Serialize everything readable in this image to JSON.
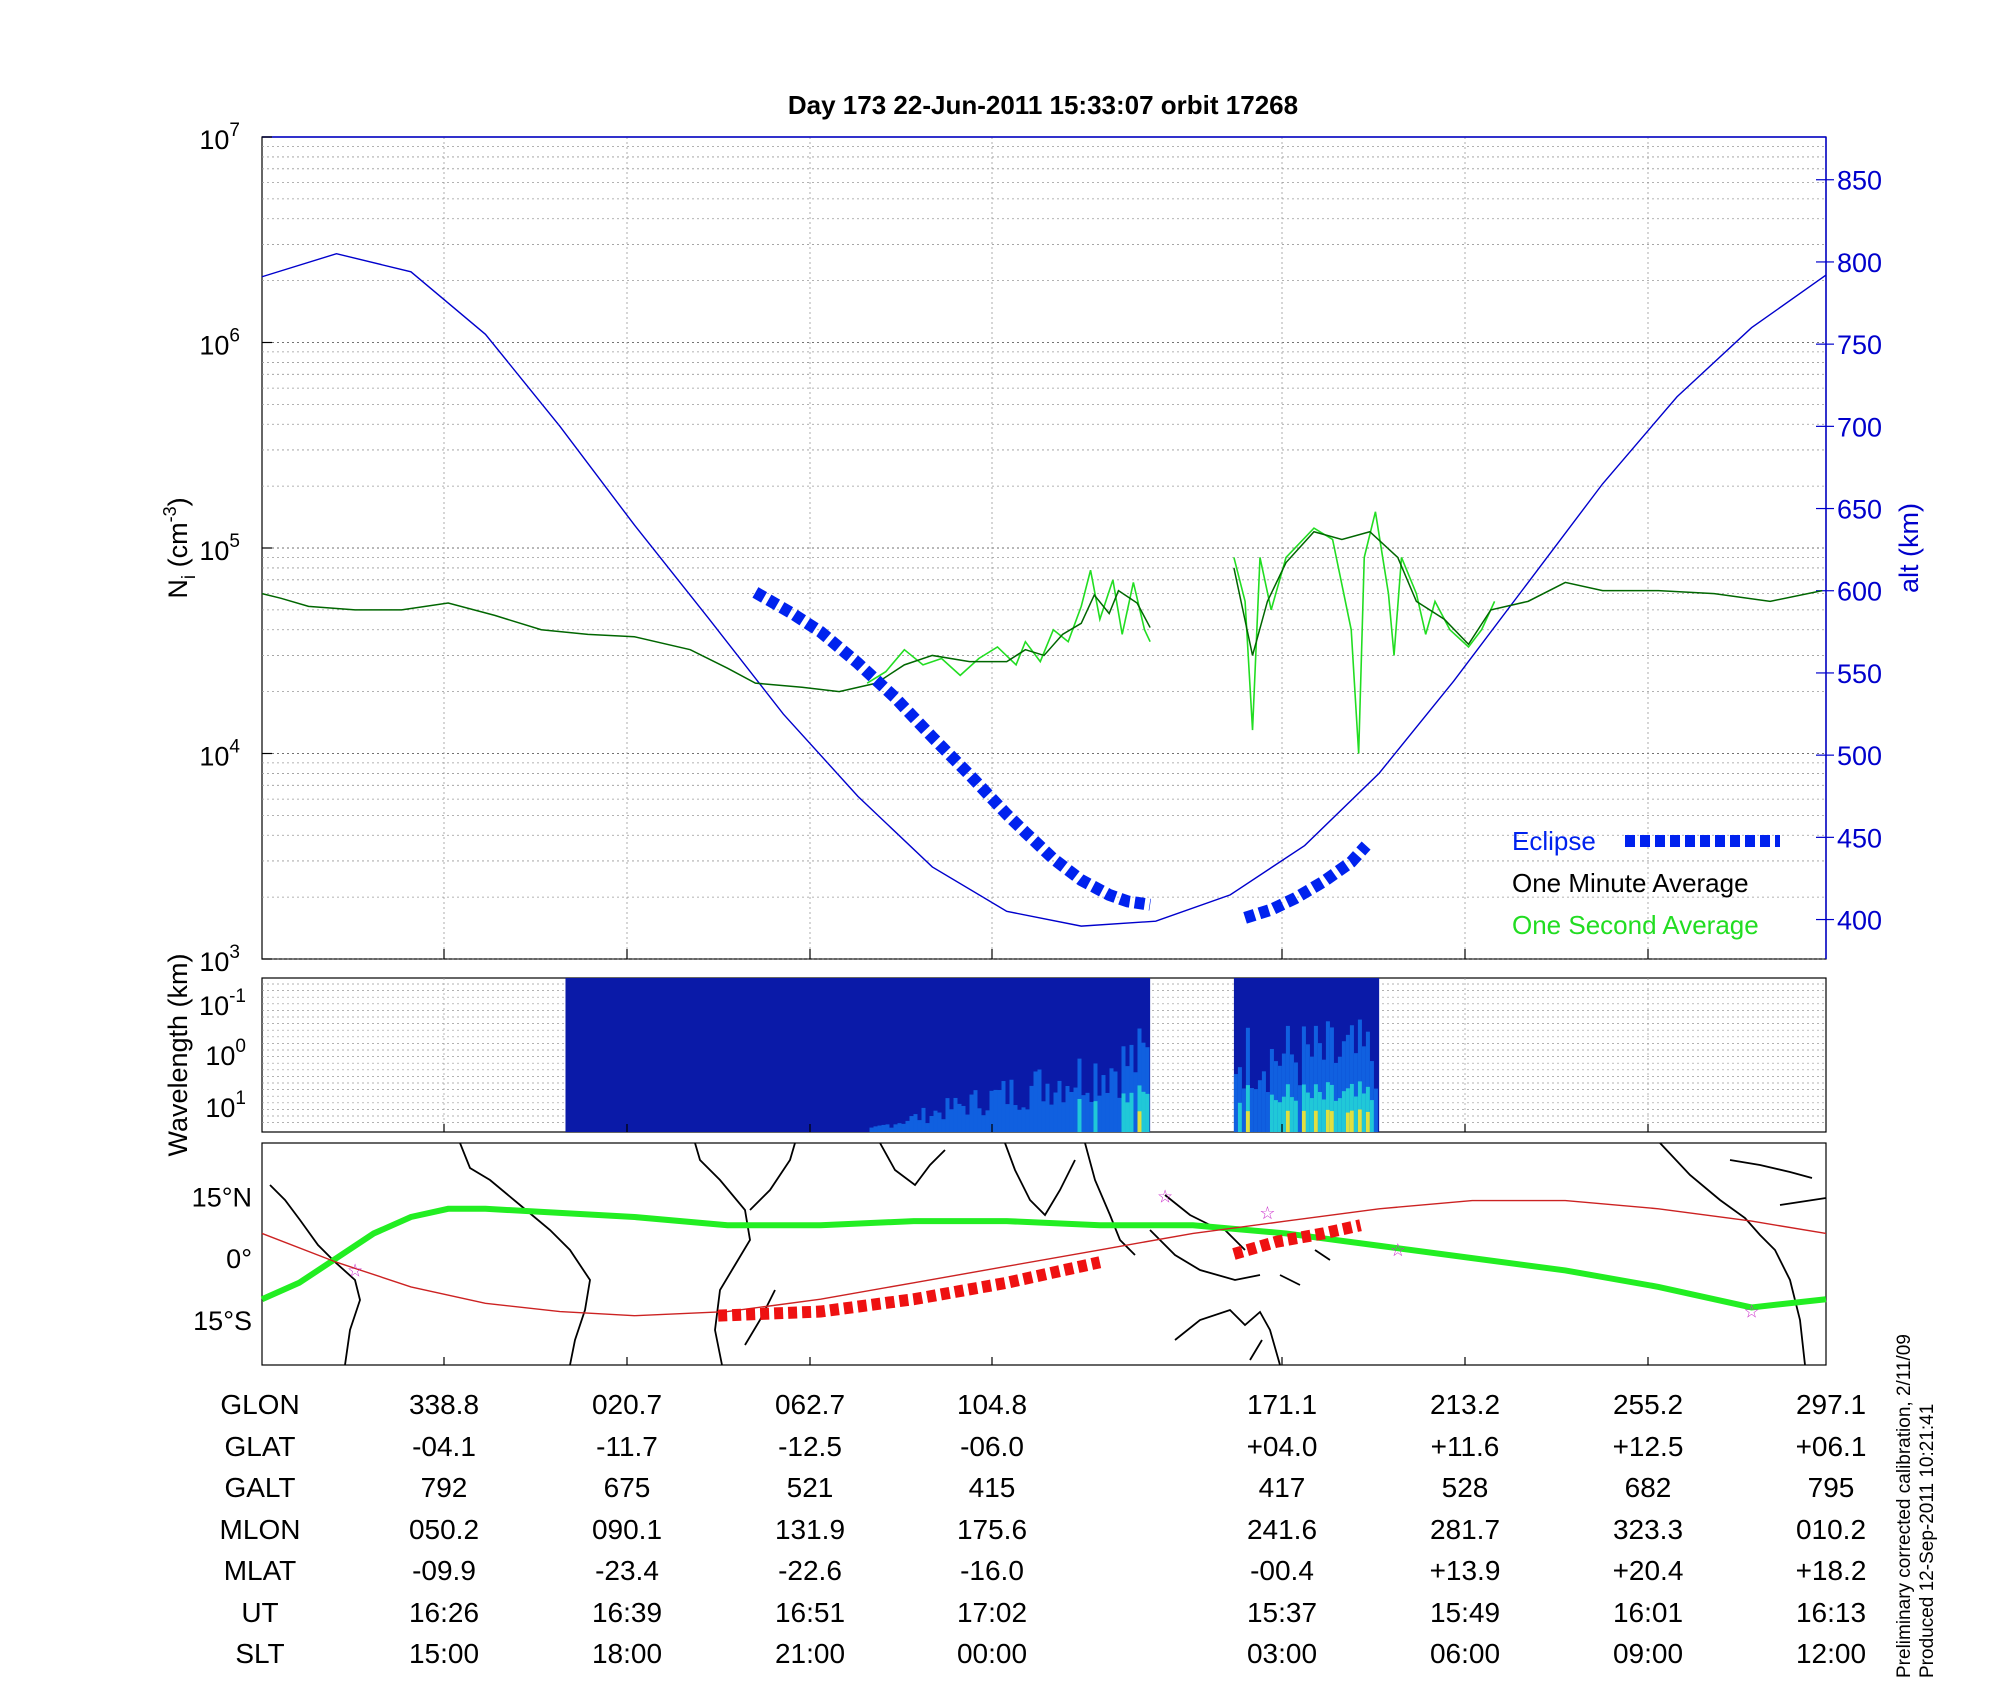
{
  "title": "Day 173  22-Jun-2011 15:33:07   orbit 17268",
  "chart_data": [
    {
      "type": "line",
      "panel": "ion-density",
      "ylabel_left": "N_i (cm^-3)",
      "ylabel_left_parts": {
        "base": "N",
        "sub": "i",
        "units": " (cm",
        "sup": "-3",
        "close": ")"
      },
      "ylabel_right": "alt (km)",
      "yscale_left": "log",
      "ylim_left": [
        1000,
        10000000
      ],
      "yticks_left": [
        {
          "value": 1000,
          "base": "10",
          "exp": "3"
        },
        {
          "value": 10000,
          "base": "10",
          "exp": "4"
        },
        {
          "value": 100000,
          "base": "10",
          "exp": "5"
        },
        {
          "value": 1000000,
          "base": "10",
          "exp": "6"
        },
        {
          "value": 10000000,
          "base": "10",
          "exp": "7"
        }
      ],
      "ylim_right": [
        376,
        876
      ],
      "yticks_right": [
        400,
        450,
        500,
        550,
        600,
        650,
        700,
        750,
        800,
        850
      ],
      "grid": true,
      "legend_placement": "bottom-right",
      "legend": [
        "Eclipse",
        "One Minute Average",
        "One Second Average"
      ],
      "colors": {
        "altitude": "#0000cc",
        "eclipse": "#0022ee",
        "minute": "#006600",
        "second": "#22dd22",
        "right_axis": "#0000cc"
      },
      "series": [
        {
          "name": "Eclipse",
          "segments": [
            [
              [
                265,
                599
              ],
              [
                285,
                586
              ],
              [
                300,
                575
              ],
              [
                320,
                556
              ],
              [
                340,
                535
              ],
              [
                360,
                511
              ],
              [
                380,
                488
              ],
              [
                400,
                464
              ],
              [
                410,
                453
              ],
              [
                425,
                437
              ],
              [
                440,
                424
              ],
              [
                455,
                415
              ],
              [
                465,
                411
              ],
              [
                477,
                409
              ]
            ],
            [
              [
                528,
                401
              ],
              [
                542,
                406
              ],
              [
                555,
                413
              ],
              [
                570,
                423
              ],
              [
                585,
                435
              ],
              [
                593,
                445
              ]
            ]
          ]
        },
        {
          "name": "One Minute Average",
          "segments": [
            [
              [
                0,
                60000
              ],
              [
                10,
                57000
              ],
              [
                25,
                52000
              ],
              [
                50,
                50000
              ],
              [
                75,
                50000
              ],
              [
                100,
                54000
              ],
              [
                125,
                47000
              ],
              [
                150,
                40000
              ],
              [
                175,
                38000
              ],
              [
                200,
                37000
              ],
              [
                230,
                32000
              ],
              [
                250,
                26000
              ],
              [
                265,
                22000
              ],
              [
                290,
                21000
              ],
              [
                310,
                20000
              ],
              [
                330,
                22000
              ],
              [
                345,
                27000
              ],
              [
                360,
                30000
              ],
              [
                380,
                28000
              ],
              [
                400,
                28000
              ],
              [
                410,
                32000
              ],
              [
                420,
                30000
              ],
              [
                430,
                38000
              ],
              [
                440,
                43000
              ],
              [
                447,
                59000
              ],
              [
                455,
                48000
              ],
              [
                460,
                62000
              ],
              [
                470,
                54000
              ],
              [
                477,
                41000
              ]
            ],
            [
              [
                522,
                80000
              ],
              [
                532,
                30000
              ],
              [
                540,
                55000
              ],
              [
                550,
                85000
              ],
              [
                565,
                120000
              ],
              [
                580,
                110000
              ],
              [
                595,
                120000
              ],
              [
                610,
                90000
              ],
              [
                620,
                55000
              ],
              [
                635,
                45000
              ],
              [
                648,
                34000
              ],
              [
                660,
                50000
              ],
              [
                680,
                55000
              ],
              [
                700,
                68000
              ],
              [
                720,
                62000
              ],
              [
                750,
                62000
              ],
              [
                780,
                60000
              ],
              [
                810,
                55000
              ],
              [
                838,
                62000
              ]
            ]
          ]
        },
        {
          "name": "One Second Average",
          "segments": [
            [
              [
                325,
                22000
              ],
              [
                335,
                25000
              ],
              [
                345,
                32000
              ],
              [
                355,
                27000
              ],
              [
                365,
                29000
              ],
              [
                375,
                24000
              ],
              [
                385,
                29000
              ],
              [
                395,
                33000
              ],
              [
                405,
                27000
              ],
              [
                410,
                35000
              ],
              [
                418,
                28000
              ],
              [
                425,
                40000
              ],
              [
                433,
                35000
              ],
              [
                440,
                52000
              ],
              [
                445,
                78000
              ],
              [
                450,
                45000
              ],
              [
                457,
                70000
              ],
              [
                462,
                38000
              ],
              [
                468,
                68000
              ],
              [
                474,
                40000
              ],
              [
                477,
                35000
              ]
            ],
            [
              [
                522,
                90000
              ],
              [
                528,
                55000
              ],
              [
                532,
                13000
              ],
              [
                536,
                90000
              ],
              [
                542,
                50000
              ],
              [
                550,
                90000
              ],
              [
                565,
                125000
              ],
              [
                575,
                110000
              ],
              [
                585,
                40000
              ],
              [
                589,
                10000
              ],
              [
                592,
                90000
              ],
              [
                598,
                150000
              ],
              [
                605,
                60000
              ],
              [
                608,
                30000
              ],
              [
                612,
                90000
              ],
              [
                620,
                60000
              ],
              [
                625,
                38000
              ],
              [
                630,
                55000
              ],
              [
                638,
                40000
              ],
              [
                648,
                33000
              ],
              [
                655,
                40000
              ],
              [
                662,
                55000
              ]
            ]
          ]
        },
        {
          "name": "alt (km)",
          "x": [
            0,
            40,
            80,
            120,
            160,
            200,
            240,
            280,
            320,
            360,
            400,
            440,
            480,
            520,
            560,
            600,
            640,
            680,
            720,
            760,
            800,
            840
          ],
          "y": [
            791,
            805,
            794,
            756,
            700,
            640,
            583,
            525,
            475,
            432,
            405,
            396,
            399,
            415,
            445,
            489,
            545,
            605,
            665,
            718,
            760,
            792
          ]
        }
      ]
    },
    {
      "type": "heatmap",
      "panel": "spectrogram",
      "ylabel": "Wavelength (km)",
      "yticks": [
        {
          "base": "10",
          "exp": "-1"
        },
        {
          "base": "10",
          "exp": "0"
        },
        {
          "base": "10",
          "exp": "1"
        }
      ],
      "segments": [
        [
          163,
          477
        ],
        [
          522,
          600
        ]
      ]
    },
    {
      "type": "line",
      "panel": "ground-track",
      "yticks": [
        "15°N",
        "0°",
        "15°S"
      ],
      "ylim": [
        -26,
        28
      ],
      "colors": {
        "track": "#22ee22",
        "magnetic_equator": "#cc2222",
        "eclipse_track": "#ee1111",
        "stars": "#cc33cc"
      },
      "series": [
        {
          "name": "geographic",
          "x": [
            0,
            20,
            40,
            60,
            80,
            100,
            120,
            160,
            200,
            250,
            300,
            350,
            400,
            450,
            500,
            550,
            600,
            650,
            700,
            750,
            800,
            840
          ],
          "y": [
            -10,
            -6,
            0,
            6,
            10,
            12,
            12,
            11,
            10,
            8,
            8,
            9,
            9,
            8,
            8,
            6,
            3,
            0,
            -3,
            -7,
            -12,
            -10
          ]
        },
        {
          "name": "magnetic-equator",
          "x": [
            0,
            40,
            80,
            120,
            160,
            200,
            250,
            300,
            350,
            400,
            450,
            500,
            550,
            600,
            650,
            700,
            750,
            800,
            840
          ],
          "y": [
            6,
            -1,
            -7,
            -11,
            -13,
            -14,
            -13,
            -10,
            -6,
            -2,
            2,
            6,
            9,
            12,
            14,
            14,
            12,
            9,
            6
          ]
        },
        {
          "name": "eclipse-track",
          "segments": [
            [
              [
                245,
                -14
              ],
              [
                300,
                -13
              ],
              [
                350,
                -10
              ],
              [
                400,
                -6
              ],
              [
                440,
                -2
              ],
              [
                450,
                -1
              ]
            ],
            [
              [
                522,
                1
              ],
              [
                545,
                4
              ],
              [
                570,
                6
              ],
              [
                590,
                8
              ]
            ]
          ]
        },
        {
          "name": "stars",
          "x": [
            50,
            485,
            540,
            610,
            800
          ],
          "y": [
            -3,
            15,
            11,
            2,
            -13
          ]
        }
      ]
    }
  ],
  "readout": {
    "labels": [
      "GLON",
      "GLAT",
      "GALT",
      "MLON",
      "MLAT",
      "UT",
      "SLT"
    ],
    "columns": [
      [
        "338.8",
        "-04.1",
        "792",
        "050.2",
        "-09.9",
        "16:26",
        "15:00"
      ],
      [
        "020.7",
        "-11.7",
        "675",
        "090.1",
        "-23.4",
        "16:39",
        "18:00"
      ],
      [
        "062.7",
        "-12.5",
        "521",
        "131.9",
        "-22.6",
        "16:51",
        "21:00"
      ],
      [
        "104.8",
        "-06.0",
        "415",
        "175.6",
        "-16.0",
        "17:02",
        "00:00"
      ],
      [
        "171.1",
        "+04.0",
        "417",
        "241.6",
        "-00.4",
        "15:37",
        "03:00"
      ],
      [
        "213.2",
        "+11.6",
        "528",
        "281.7",
        "+13.9",
        "15:49",
        "06:00"
      ],
      [
        "255.2",
        "+12.5",
        "682",
        "323.3",
        "+20.4",
        "16:01",
        "09:00"
      ],
      [
        "297.1",
        "+06.1",
        "795",
        "010.2",
        "+18.2",
        "16:13",
        "12:00"
      ]
    ]
  },
  "note": {
    "line1": "Preliminary corrected calibration, 2/11/09",
    "line2": "Produced 12-Sep-2011 10:21:41"
  }
}
